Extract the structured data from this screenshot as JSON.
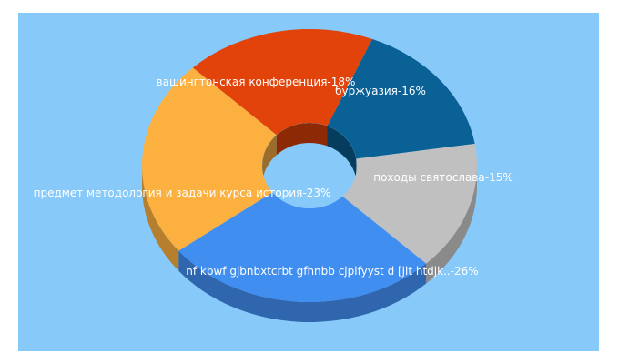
{
  "background_color": "#87cafa",
  "chart_data": {
    "type": "pie",
    "style": "3d-donut",
    "slices": [
      {
        "label": "буржуазия-16%",
        "value": 16,
        "color": "#0a6196"
      },
      {
        "label": "походы святослава-15%",
        "value": 15,
        "color": "#c0c0c0"
      },
      {
        "label": "nf kbwf gjbnbxtcrbt gfhnbb cjplfyyst d [jlt htdjk..-26%",
        "value": 26,
        "color": "#418ef1"
      },
      {
        "label": "предмет методология и задачи курса история-23%",
        "value": 23,
        "color": "#fbb040"
      },
      {
        "label": "вашингтонская конференция-18%",
        "value": 18,
        "color": "#e2430a"
      }
    ]
  }
}
